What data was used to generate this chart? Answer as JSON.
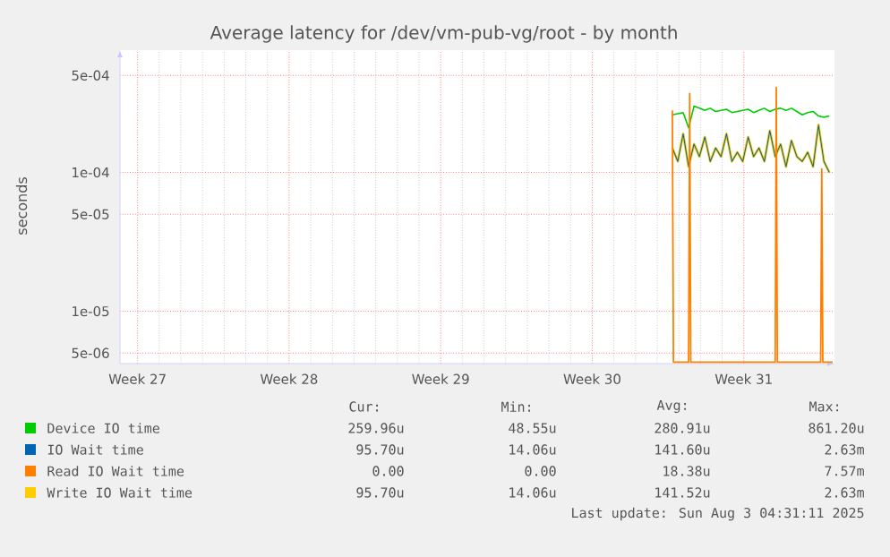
{
  "chart_data": {
    "type": "line",
    "title": "Average latency for /dev/vm-pub-vg/root - by month",
    "ylabel": "seconds",
    "x": [
      "2025-07-26T16:48",
      "2025-07-26T22:48",
      "2025-07-27T04:48",
      "2025-07-27T10:48",
      "2025-07-27T16:48",
      "2025-07-27T22:48",
      "2025-07-28T04:48",
      "2025-07-28T10:48",
      "2025-07-28T16:48",
      "2025-07-28T22:48",
      "2025-07-29T04:48",
      "2025-07-29T10:48",
      "2025-07-29T16:48",
      "2025-07-29T22:48",
      "2025-07-30T04:48",
      "2025-07-30T10:48",
      "2025-07-30T16:48",
      "2025-07-30T22:48",
      "2025-07-31T04:48",
      "2025-07-31T10:48",
      "2025-07-31T16:48",
      "2025-07-31T22:48",
      "2025-08-01T04:48",
      "2025-08-01T10:48",
      "2025-08-01T16:48",
      "2025-08-01T22:48",
      "2025-08-02T04:48",
      "2025-08-02T10:48",
      "2025-08-02T16:48",
      "2025-08-02T22:48"
    ],
    "series": [
      {
        "name": "Device IO time",
        "color": "#00cc00",
        "values": [
          0.00026,
          0.000265,
          0.00027,
          0.00021,
          0.0003,
          0.00029,
          0.00028,
          0.00029,
          0.000275,
          0.00028,
          0.000285,
          0.00027,
          0.000275,
          0.00028,
          0.000285,
          0.00027,
          0.00028,
          0.00029,
          0.000275,
          0.000285,
          0.00029,
          0.00028,
          0.00029,
          0.000275,
          0.00026,
          0.00027,
          0.000275,
          0.000255,
          0.00025,
          0.000255
        ]
      },
      {
        "name": "IO Wait time",
        "color": "#0066b3",
        "values": [
          0.00015,
          0.00012,
          0.00019,
          0.00011,
          0.00016,
          0.00013,
          0.00018,
          0.00012,
          0.00015,
          0.00013,
          0.00019,
          0.00012,
          0.00014,
          0.00012,
          0.00018,
          0.00013,
          0.00015,
          0.00012,
          0.0002,
          0.00013,
          0.00016,
          0.00011,
          0.00017,
          0.00013,
          0.00012,
          0.00014,
          0.00011,
          0.00022,
          0.00012,
          0.0001
        ]
      },
      {
        "name": "Read IO Wait time",
        "color": "#ff8000",
        "x": [
          "2025-07-26T16:48",
          "2025-07-26T18:00",
          "2025-07-27T10:48",
          "2025-07-27T12:00",
          "2025-07-27T13:12",
          "2025-07-31T10:48",
          "2025-07-31T12:00",
          "2025-07-31T13:12",
          "2025-08-02T13:12",
          "2025-08-02T14:24",
          "2025-08-02T15:36",
          "2025-08-03T02:24"
        ],
        "values": [
          0.00028,
          4.3e-06,
          4.3e-06,
          0.00037,
          4.3e-06,
          4.3e-06,
          0.00041,
          4.3e-06,
          4.3e-06,
          0.000106,
          4.3e-06,
          4.3e-06
        ]
      },
      {
        "name": "Write IO Wait time",
        "color": "#ffcc00",
        "values": [
          0.00015,
          0.00012,
          0.00019,
          0.00011,
          0.00016,
          0.00013,
          0.00018,
          0.00012,
          0.00015,
          0.00013,
          0.00019,
          0.00012,
          0.00014,
          0.00012,
          0.00018,
          0.00013,
          0.00015,
          0.00012,
          0.0002,
          0.00013,
          0.00016,
          0.00011,
          0.00017,
          0.00013,
          0.00012,
          0.00014,
          0.00011,
          0.00022,
          0.00012,
          0.0001
        ]
      }
    ],
    "xlim": [
      "2025-07-01T04:31",
      "2025-08-03T04:31"
    ],
    "xticks": [
      {
        "value": "2025-07-02",
        "label": "Week 27"
      },
      {
        "value": "2025-07-09",
        "label": "Week 28"
      },
      {
        "value": "2025-07-16",
        "label": "Week 29"
      },
      {
        "value": "2025-07-23",
        "label": "Week 30"
      },
      {
        "value": "2025-07-30",
        "label": "Week 31"
      }
    ],
    "ylim": [
      4.2e-06,
      0.00076
    ],
    "yticks": [
      {
        "value": 5e-06,
        "label": "5e-06"
      },
      {
        "value": 1e-05,
        "label": "1e-05"
      },
      {
        "value": 5e-05,
        "label": "5e-05"
      },
      {
        "value": 0.0001,
        "label": "1e-04"
      },
      {
        "value": 0.0005,
        "label": "5e-04"
      }
    ],
    "log": "y",
    "grid": true,
    "legend": "bottom",
    "annotations": [
      "Cur:",
      "Min:",
      "Avg:",
      "Max:",
      "259.96u",
      "48.55u",
      "280.91u",
      "861.20u",
      "95.70u",
      "14.06u",
      "141.60u",
      "2.63m",
      "0.00",
      "0.00",
      "18.38u",
      "7.57m",
      "95.70u",
      "14.06u",
      "141.52u",
      "2.63m",
      "Last update: Sun Aug  3 04:31:11 2025"
    ]
  }
}
